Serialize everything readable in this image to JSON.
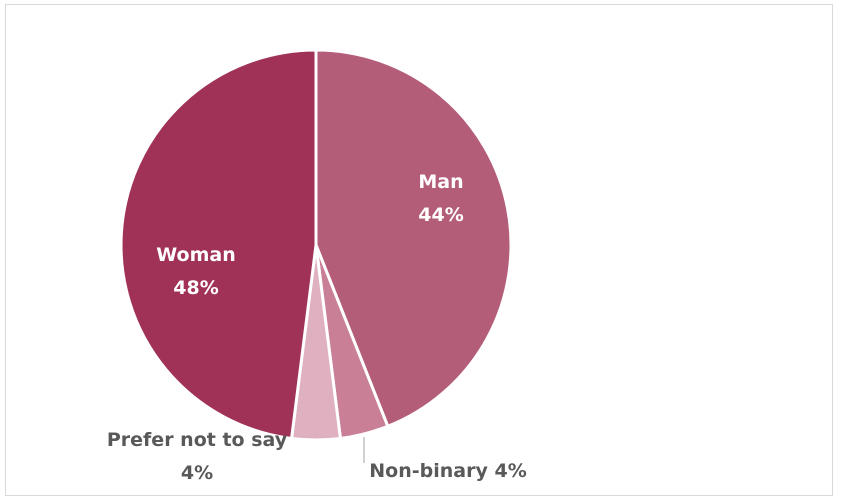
{
  "chart_data": {
    "type": "pie",
    "title": "",
    "slices": [
      {
        "name": "Man",
        "value": 44,
        "label_value": "44%",
        "color": "#b35d78"
      },
      {
        "name": "Non-binary",
        "value": 4,
        "label_value": "4%",
        "color": "#c98097"
      },
      {
        "name": "Prefer not to say",
        "value": 4,
        "label_value": "4%",
        "color": "#deb0c0"
      },
      {
        "name": "Woman",
        "value": 48,
        "label_value": "48%",
        "color": "#a03157"
      }
    ],
    "legend": "none",
    "data_labels": "category-and-percent",
    "start_angle": "12 o'clock",
    "direction": "clockwise"
  }
}
